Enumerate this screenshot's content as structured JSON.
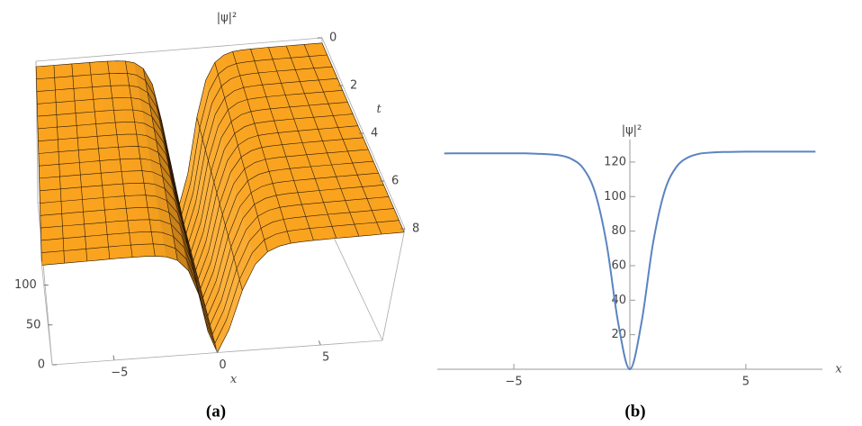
{
  "chart_data": [
    {
      "type": "surface3d",
      "title": "|ψ|²",
      "caption": "(a)",
      "xlabel": "x",
      "tlabel": "t",
      "color": "#f9a31f",
      "x": [
        -8,
        -7.5,
        -7,
        -6.5,
        -6,
        -5.5,
        -5,
        -4.5,
        -4,
        -3.5,
        -3,
        -2.5,
        -2,
        -1.5,
        -1,
        -0.5,
        0,
        0.5,
        1,
        1.5,
        2,
        2.5,
        3,
        3.5,
        4,
        4.5,
        5,
        5.5,
        6,
        6.5,
        7,
        7.5,
        8
      ],
      "values": [
        125,
        125,
        125,
        125,
        125,
        125,
        125,
        125,
        124.8,
        124.5,
        123.8,
        121.7,
        116.2,
        102.4,
        72.5,
        26.7,
        0,
        26.9,
        73.1,
        103.2,
        117.1,
        122.6,
        124.8,
        125.5,
        125.8,
        125.9,
        126,
        126,
        126,
        126,
        126,
        126,
        126
      ],
      "xlim": [
        -8,
        8
      ],
      "tlim": [
        0,
        8
      ],
      "zlim": [
        0,
        130
      ],
      "xticks": [
        {
          "value": -5,
          "label": "−5"
        },
        0,
        5
      ],
      "tticks": [
        0,
        2,
        4,
        6,
        8
      ],
      "zticks": [
        0,
        50,
        100
      ]
    },
    {
      "type": "line",
      "ylabel": "|ψ|²",
      "caption": "(b)",
      "xlabel": "x",
      "color": "#5b84c0",
      "x": [
        -8,
        -7.5,
        -7,
        -6.5,
        -6,
        -5.5,
        -5,
        -4.5,
        -4,
        -3.5,
        -3,
        -2.5,
        -2,
        -1.5,
        -1,
        -0.5,
        0,
        0.5,
        1,
        1.5,
        2,
        2.5,
        3,
        3.5,
        4,
        4.5,
        5,
        5.5,
        6,
        6.5,
        7,
        7.5,
        8
      ],
      "values": [
        125,
        125,
        125,
        125,
        125,
        125,
        125,
        125,
        124.8,
        124.5,
        123.8,
        121.7,
        116.2,
        102.4,
        72.5,
        26.7,
        0,
        26.9,
        73.1,
        103.2,
        117.1,
        122.6,
        124.8,
        125.5,
        125.8,
        125.9,
        126,
        126,
        126,
        126,
        126,
        126,
        126
      ],
      "xlim": [
        -8.3,
        8.3
      ],
      "ylim": [
        0,
        133
      ],
      "xticks": [
        {
          "value": -5,
          "label": "−5"
        },
        5
      ],
      "yticks": [
        20,
        40,
        60,
        80,
        100,
        120
      ]
    }
  ]
}
